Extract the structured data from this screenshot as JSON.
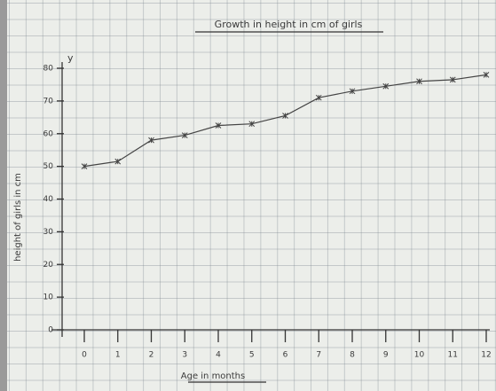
{
  "chart_data": {
    "type": "line",
    "title": "Growth in height in cm of girls",
    "x_label": "Age in months",
    "y_label": "height of girls in cm",
    "y_axis_letter": "y",
    "x": [
      0,
      1,
      2,
      3,
      4,
      5,
      6,
      7,
      8,
      9,
      10,
      11,
      12
    ],
    "series": [
      {
        "color": "#444444",
        "values": [
          50,
          51.5,
          58,
          59.5,
          62.5,
          63,
          65.5,
          71,
          73,
          74.5,
          76,
          76.5,
          78
        ]
      }
    ],
    "xlim": [
      0,
      12
    ],
    "xticks": [
      0,
      1,
      2,
      3,
      4,
      5,
      6,
      7,
      8,
      9,
      10,
      11,
      12
    ],
    "ylim": [
      0,
      80
    ],
    "yticks": [
      0,
      10,
      20,
      30,
      40,
      50,
      60,
      70,
      80
    ]
  }
}
